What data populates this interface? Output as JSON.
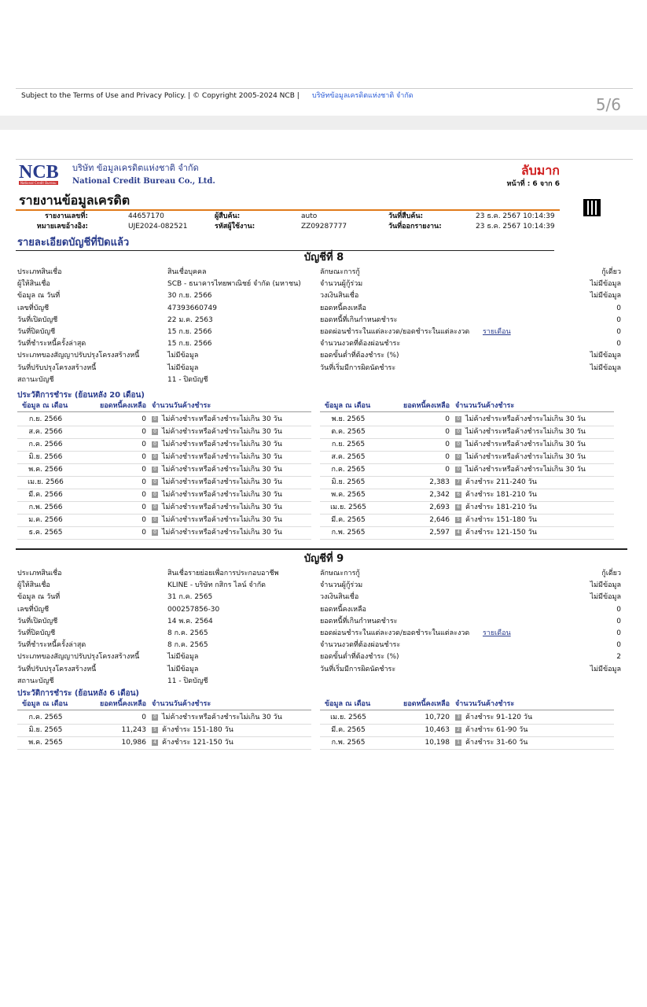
{
  "top_footer": {
    "text": "Subject to the Terms of Use and Privacy Policy. | © Copyright 2005-2024 NCB |",
    "link": "บริษัทข้อมูลเครดิตแห่งชาติ จำกัด",
    "page": "5/6"
  },
  "header": {
    "logo": "NCB",
    "logo_sub": "National Credit Bureau",
    "company_th": "บริษัท ข้อมูลเครดิตแห่งชาติ จำกัด",
    "company_en": "National Credit Bureau Co., Ltd.",
    "confidential": "ลับมาก",
    "page_label": "หน้าที่ : 6 จาก 6",
    "title": "รายงานข้อมูลเครดิต"
  },
  "info": [
    [
      "รายงานเลขที่:",
      "44657170",
      "ผู้สืบค้น:",
      "auto",
      "วันที่สืบค้น:",
      "23 ธ.ค. 2567 10:14:39"
    ],
    [
      "หมายเลขอ้างอิง:",
      "UJE2024-082521",
      "รหัสผู้ใช้งาน:",
      "ZZ09287777",
      "วันที่ออกรายงาน:",
      "23 ธ.ค. 2567 10:14:39"
    ]
  ],
  "section_title": "รายละเอียดบัญชีที่ปิดแล้ว",
  "accounts": [
    {
      "title": "บัญชีที่ 8",
      "left": [
        [
          "ประเภทสินเชื่อ",
          "สินเชื่อบุคคล"
        ],
        [
          "ผู้ให้สินเชื่อ",
          "SCB - ธนาคารไทยพาณิชย์ จำกัด (มหาชน)"
        ],
        [
          "ข้อมูล ณ วันที่",
          "30 ก.ย. 2566"
        ],
        [
          "เลขที่บัญชี",
          "47393660749"
        ],
        [
          "วันที่เปิดบัญชี",
          "22 ม.ค. 2563"
        ],
        [
          "วันที่ปิดบัญชี",
          "15 ก.ย. 2566"
        ],
        [
          "วันที่ชำระหนี้ครั้งล่าสุด",
          "15 ก.ย. 2566"
        ],
        [
          "ประเภทของสัญญาปรับปรุงโครงสร้างหนี้",
          "ไม่มีข้อมูล"
        ],
        [
          "วันที่ปรับปรุงโครงสร้างหนี้",
          "ไม่มีข้อมูล"
        ],
        [
          "สถานะบัญชี",
          "11 - ปิดบัญชี"
        ]
      ],
      "right": [
        [
          "ลักษณะการกู้",
          "กู้เดี่ยว"
        ],
        [
          "จำนวนผู้กู้ร่วม",
          "ไม่มีข้อมูล"
        ],
        [
          "วงเงินสินเชื่อ",
          "ไม่มีข้อมูล"
        ],
        [
          "ยอดหนี้คงเหลือ",
          "0"
        ],
        [
          "ยอดหนี้ที่เกินกำหนดชำระ",
          "0"
        ],
        [
          "ยอดผ่อนชำระในแต่ละงวด/ยอดชำระในแต่ละงวด",
          "0",
          "รายเดือน"
        ],
        [
          "จำนวนงวดที่ต้องผ่อนชำระ",
          "0"
        ],
        [
          "ยอดขั้นต่ำที่ต้องชำระ (%)",
          "ไม่มีข้อมูล"
        ],
        [
          "วันที่เริ่มมีการผิดนัดชำระ",
          "ไม่มีข้อมูล"
        ]
      ],
      "history_title": "ประวัติการชำระ (ย้อนหลัง 20 เดือน)",
      "history_headers": [
        "ข้อมูล ณ เดือน",
        "ยอดหนี้คงเหลือ",
        "จำนวนวันค้างชำระ"
      ],
      "history_left": [
        [
          "ก.ย. 2566",
          "0",
          "0",
          "ไม่ค้างชำระหรือค้างชำระไม่เกิน 30 วัน"
        ],
        [
          "ส.ค. 2566",
          "0",
          "0",
          "ไม่ค้างชำระหรือค้างชำระไม่เกิน 30 วัน"
        ],
        [
          "ก.ค. 2566",
          "0",
          "0",
          "ไม่ค้างชำระหรือค้างชำระไม่เกิน 30 วัน"
        ],
        [
          "มิ.ย. 2566",
          "0",
          "0",
          "ไม่ค้างชำระหรือค้างชำระไม่เกิน 30 วัน"
        ],
        [
          "พ.ค. 2566",
          "0",
          "0",
          "ไม่ค้างชำระหรือค้างชำระไม่เกิน 30 วัน"
        ],
        [
          "เม.ย. 2566",
          "0",
          "0",
          "ไม่ค้างชำระหรือค้างชำระไม่เกิน 30 วัน"
        ],
        [
          "มี.ค. 2566",
          "0",
          "0",
          "ไม่ค้างชำระหรือค้างชำระไม่เกิน 30 วัน"
        ],
        [
          "ก.พ. 2566",
          "0",
          "0",
          "ไม่ค้างชำระหรือค้างชำระไม่เกิน 30 วัน"
        ],
        [
          "ม.ค. 2566",
          "0",
          "0",
          "ไม่ค้างชำระหรือค้างชำระไม่เกิน 30 วัน"
        ],
        [
          "ธ.ค. 2565",
          "0",
          "0",
          "ไม่ค้างชำระหรือค้างชำระไม่เกิน 30 วัน"
        ]
      ],
      "history_right": [
        [
          "พ.ย. 2565",
          "0",
          "0",
          "ไม่ค้างชำระหรือค้างชำระไม่เกิน 30 วัน"
        ],
        [
          "ต.ค. 2565",
          "0",
          "0",
          "ไม่ค้างชำระหรือค้างชำระไม่เกิน 30 วัน"
        ],
        [
          "ก.ย. 2565",
          "0",
          "0",
          "ไม่ค้างชำระหรือค้างชำระไม่เกิน 30 วัน"
        ],
        [
          "ส.ค. 2565",
          "0",
          "0",
          "ไม่ค้างชำระหรือค้างชำระไม่เกิน 30 วัน"
        ],
        [
          "ก.ค. 2565",
          "0",
          "0",
          "ไม่ค้างชำระหรือค้างชำระไม่เกิน 30 วัน"
        ],
        [
          "มิ.ย. 2565",
          "2,383",
          "7",
          "ค้างชำระ 211-240 วัน"
        ],
        [
          "พ.ค. 2565",
          "2,342",
          "6",
          "ค้างชำระ 181-210 วัน"
        ],
        [
          "เม.ย. 2565",
          "2,693",
          "6",
          "ค้างชำระ 181-210 วัน"
        ],
        [
          "มี.ค. 2565",
          "2,646",
          "5",
          "ค้างชำระ 151-180 วัน"
        ],
        [
          "ก.พ. 2565",
          "2,597",
          "4",
          "ค้างชำระ 121-150 วัน"
        ]
      ]
    },
    {
      "title": "บัญชีที่ 9",
      "left": [
        [
          "ประเภทสินเชื่อ",
          "สินเชื่อรายย่อยเพื่อการประกอบอาชีพ"
        ],
        [
          "ผู้ให้สินเชื่อ",
          "KLINE - บริษัท กสิกร ไลน์ จำกัด"
        ],
        [
          "ข้อมูล ณ วันที่",
          "31 ก.ค. 2565"
        ],
        [
          "เลขที่บัญชี",
          "000257856-30"
        ],
        [
          "วันที่เปิดบัญชี",
          "14 พ.ค. 2564"
        ],
        [
          "วันที่ปิดบัญชี",
          "8 ก.ค. 2565"
        ],
        [
          "วันที่ชำระหนี้ครั้งล่าสุด",
          "8 ก.ค. 2565"
        ],
        [
          "ประเภทของสัญญาปรับปรุงโครงสร้างหนี้",
          "ไม่มีข้อมูล"
        ],
        [
          "วันที่ปรับปรุงโครงสร้างหนี้",
          "ไม่มีข้อมูล"
        ],
        [
          "สถานะบัญชี",
          "11 - ปิดบัญชี"
        ]
      ],
      "right": [
        [
          "ลักษณะการกู้",
          "กู้เดี่ยว"
        ],
        [
          "จำนวนผู้กู้ร่วม",
          "ไม่มีข้อมูล"
        ],
        [
          "วงเงินสินเชื่อ",
          "ไม่มีข้อมูล"
        ],
        [
          "ยอดหนี้คงเหลือ",
          "0"
        ],
        [
          "ยอดหนี้ที่เกินกำหนดชำระ",
          "0"
        ],
        [
          "ยอดผ่อนชำระในแต่ละงวด/ยอดชำระในแต่ละงวด",
          "0",
          "รายเดือน"
        ],
        [
          "จำนวนงวดที่ต้องผ่อนชำระ",
          "0"
        ],
        [
          "ยอดขั้นต่ำที่ต้องชำระ (%)",
          "2"
        ],
        [
          "วันที่เริ่มมีการผิดนัดชำระ",
          "ไม่มีข้อมูล"
        ]
      ],
      "history_title": "ประวัติการชำระ (ย้อนหลัง 6 เดือน)",
      "history_headers": [
        "ข้อมูล ณ เดือน",
        "ยอดหนี้คงเหลือ",
        "จำนวนวันค้างชำระ"
      ],
      "history_left": [
        [
          "ก.ค. 2565",
          "0",
          "0",
          "ไม่ค้างชำระหรือค้างชำระไม่เกิน 30 วัน"
        ],
        [
          "มิ.ย. 2565",
          "11,243",
          "5",
          "ค้างชำระ 151-180 วัน"
        ],
        [
          "พ.ค. 2565",
          "10,986",
          "4",
          "ค้างชำระ 121-150 วัน"
        ]
      ],
      "history_right": [
        [
          "เม.ย. 2565",
          "10,720",
          "3",
          "ค้างชำระ 91-120 วัน"
        ],
        [
          "มี.ค. 2565",
          "10,463",
          "2",
          "ค้างชำระ 61-90 วัน"
        ],
        [
          "ก.พ. 2565",
          "10,198",
          "1",
          "ค้างชำระ 31-60 วัน"
        ]
      ]
    }
  ]
}
